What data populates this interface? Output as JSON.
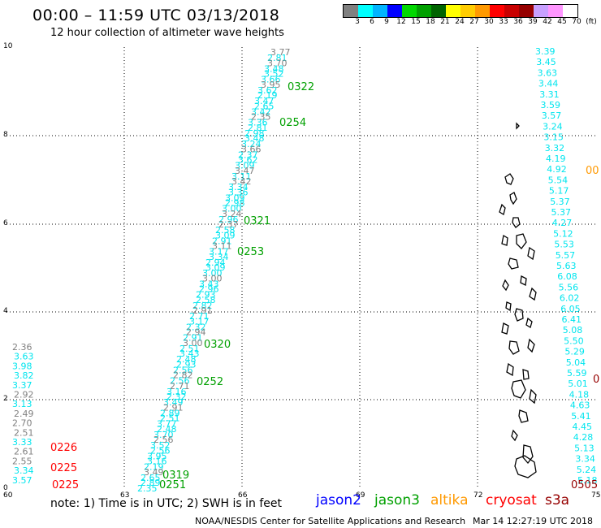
{
  "header": {
    "title": "00:00 – 11:59 UTC 03/13/2018",
    "subtitle": "12 hour collection of altimeter wave heights"
  },
  "legend": {
    "colors": [
      "#808080",
      "#00ffff",
      "#00b4ff",
      "#0000ff",
      "#00d800",
      "#00a000",
      "#006400",
      "#ffff00",
      "#ffcc00",
      "#ff9900",
      "#ff0000",
      "#c80000",
      "#960000",
      "#c8a0ff",
      "#ff96ff",
      "#ffffff",
      "#000000"
    ],
    "labels": [
      "3",
      "6",
      "9",
      "12",
      "15",
      "18",
      "21",
      "24",
      "27",
      "30",
      "33",
      "36",
      "39",
      "42",
      "45",
      "70",
      "(ft)"
    ]
  },
  "axes": {
    "x_ticks": [
      "60",
      "63",
      "66",
      "69",
      "72",
      "75"
    ],
    "y_ticks": [
      "0",
      "2",
      "4",
      "6",
      "8",
      "10"
    ]
  },
  "track_times": {
    "green": [
      "0322",
      "0254",
      "0321",
      "0253",
      "0320",
      "0252",
      "0319",
      "0251"
    ],
    "red": [
      "0226",
      "0225",
      "0225"
    ],
    "orange": [
      "00"
    ],
    "darkred": [
      "0505",
      "0"
    ]
  },
  "left_track": [
    {
      "v": "2.36",
      "c": "gray"
    },
    {
      "v": "3.63",
      "c": "cyan"
    },
    {
      "v": "3.98",
      "c": "cyan"
    },
    {
      "v": "3.82",
      "c": "cyan"
    },
    {
      "v": "3.37",
      "c": "cyan"
    },
    {
      "v": "2.92",
      "c": "gray"
    },
    {
      "v": "3.13",
      "c": "cyan"
    },
    {
      "v": "2.49",
      "c": "gray"
    },
    {
      "v": "2.70",
      "c": "gray"
    },
    {
      "v": "2.51",
      "c": "gray"
    },
    {
      "v": "3.33",
      "c": "cyan"
    },
    {
      "v": "2.61",
      "c": "gray"
    },
    {
      "v": "2.55",
      "c": "gray"
    },
    {
      "v": "3.34",
      "c": "cyan"
    },
    {
      "v": "3.57",
      "c": "cyan"
    }
  ],
  "right_track": [
    {
      "v": "3.39"
    },
    {
      "v": "3.45"
    },
    {
      "v": "3.63"
    },
    {
      "v": "3.44"
    },
    {
      "v": "3.31"
    },
    {
      "v": "3.59"
    },
    {
      "v": "3.57"
    },
    {
      "v": "3.24"
    },
    {
      "v": "3.15"
    },
    {
      "v": "3.32"
    },
    {
      "v": "4.19"
    },
    {
      "v": "4.92"
    },
    {
      "v": "5.54"
    },
    {
      "v": "5.17"
    },
    {
      "v": "5.37"
    },
    {
      "v": "5.37"
    },
    {
      "v": "4.27"
    },
    {
      "v": "5.12"
    },
    {
      "v": "5.53"
    },
    {
      "v": "5.57"
    },
    {
      "v": "5.63"
    },
    {
      "v": "6.08"
    },
    {
      "v": "5.56"
    },
    {
      "v": "6.02"
    },
    {
      "v": "6.05"
    },
    {
      "v": "6.41"
    },
    {
      "v": "5.08"
    },
    {
      "v": "5.50"
    },
    {
      "v": "5.29"
    },
    {
      "v": "5.04"
    },
    {
      "v": "5.59"
    },
    {
      "v": "5.01"
    },
    {
      "v": "4.18"
    },
    {
      "v": "4.63"
    },
    {
      "v": "5.41"
    },
    {
      "v": "4.45"
    },
    {
      "v": "4.28"
    },
    {
      "v": "5.13"
    },
    {
      "v": "3.34"
    },
    {
      "v": "5.24"
    },
    {
      "v": "5.18"
    }
  ],
  "diag_visible_values": [
    "3.77",
    "3.70",
    "3.52",
    "3.95",
    "2.19",
    "2.65",
    "2.35",
    "2.81",
    "3.48",
    "3.66",
    "3.62",
    "3.47",
    "3.42",
    "3.36",
    "2.98",
    "3.24",
    "2.37",
    "3.09",
    "3.11",
    "3.34",
    "3.09",
    "3.00",
    "2.96",
    "2.58",
    "2.91",
    "3.17",
    "2.94",
    "3.00",
    "3.43",
    "2.93",
    "2.82",
    "2.71",
    "2.32",
    "2.91",
    "2.51",
    "2.48",
    "2.56",
    "2.56",
    "3.16",
    "3.49",
    "2.89"
  ],
  "notes": {
    "note": "note:  1) Time is in UTC;  2) SWH is in feet",
    "jason2": "jason2",
    "jason3": "jason3",
    "altika": "altika",
    "cryosat": "cryosat",
    "s3a": "s3a"
  },
  "footer": {
    "credit": "NOAA/NESDIS Center for Satellite Applications and Research",
    "stamp": "Mar 14 12:27:19 UTC 2018"
  }
}
